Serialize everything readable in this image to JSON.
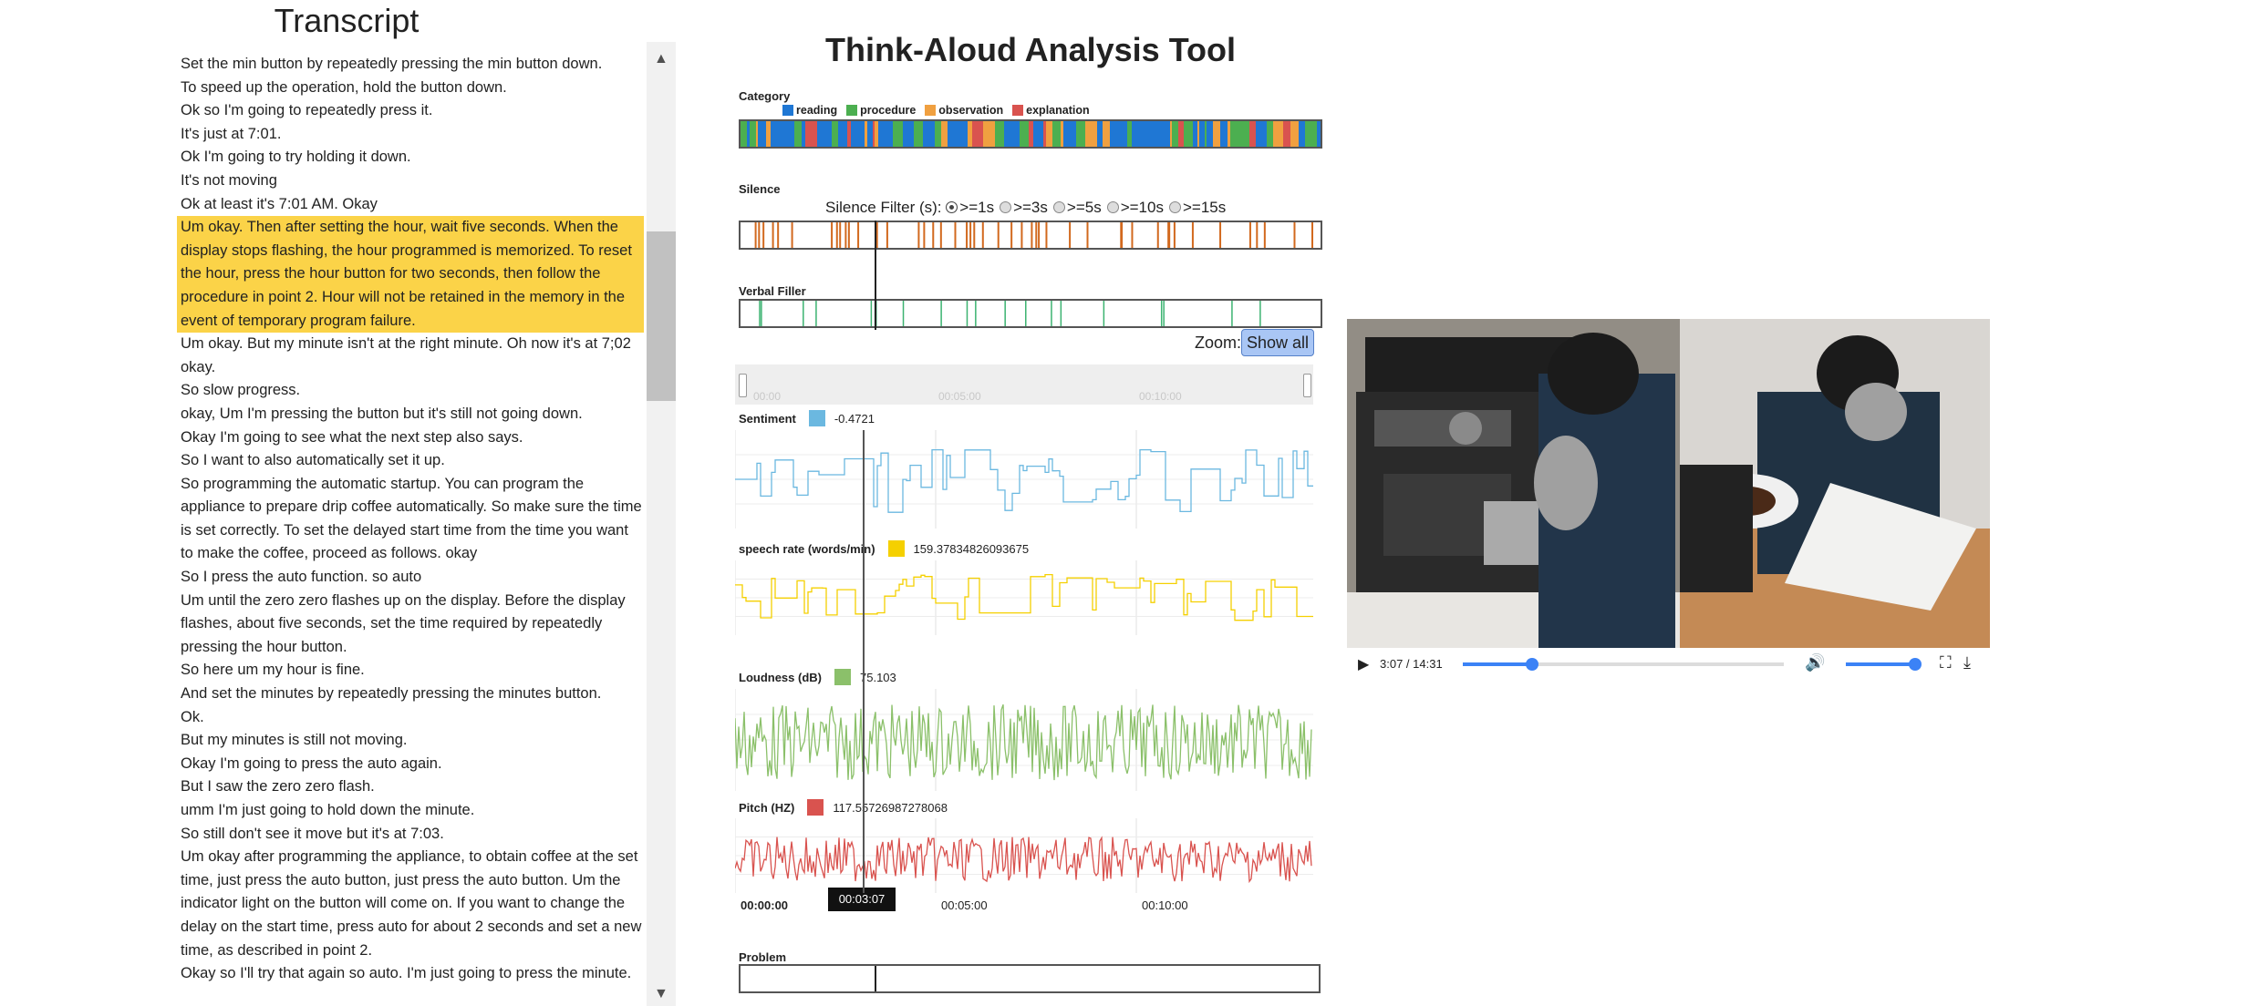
{
  "transcript": {
    "title": "Transcript",
    "lines": [
      {
        "text": "Set the min button by repeatedly pressing the min button down.",
        "highlight": false
      },
      {
        "text": "To speed up the operation, hold the button down.",
        "highlight": false
      },
      {
        "text": "Ok so I'm going to repeatedly press it.",
        "highlight": false
      },
      {
        "text": "It's just at 7:01.",
        "highlight": false
      },
      {
        "text": "Ok I'm going to try holding it down.",
        "highlight": false
      },
      {
        "text": "It's not moving",
        "highlight": false
      },
      {
        "text": "Ok at least it's 7:01 AM. Okay",
        "highlight": false
      },
      {
        "text": "Um okay. Then after setting the hour, wait five seconds. When the display stops flashing, the hour programmed is memorized. To reset the hour, press the hour button for two seconds, then follow the procedure in point 2. Hour will not be retained in the memory in the event of temporary program failure.",
        "highlight": true
      },
      {
        "text": "Um okay. But my minute isn't at the right minute. Oh now it's at 7;02 okay.",
        "highlight": false
      },
      {
        "text": "So slow progress.",
        "highlight": false
      },
      {
        "text": "okay, Um I'm pressing the button but it's still not going down.",
        "highlight": false
      },
      {
        "text": "Okay I'm going to see what the next step also says.",
        "highlight": false
      },
      {
        "text": "So I want to also automatically set it up.",
        "highlight": false
      },
      {
        "text": "So programming the automatic startup. You can program the appliance to prepare drip coffee automatically. So make sure the time is set correctly. To set the delayed start time from the time you want to make the coffee, proceed as follows. okay",
        "highlight": false
      },
      {
        "text": "So I press the auto function. so auto",
        "highlight": false
      },
      {
        "text": "Um until the zero zero flashes up on the display. Before the display flashes, about five seconds, set the time required by repeatedly pressing the hour button.",
        "highlight": false
      },
      {
        "text": "So here um my hour is fine.",
        "highlight": false
      },
      {
        "text": "And set the minutes by repeatedly pressing the minutes button.",
        "highlight": false
      },
      {
        "text": "Ok.",
        "highlight": false
      },
      {
        "text": "But my minutes is still not moving.",
        "highlight": false
      },
      {
        "text": "Okay I'm going to press the auto again.",
        "highlight": false
      },
      {
        "text": "But I saw the zero zero flash.",
        "highlight": false
      },
      {
        "text": "umm I'm just going to hold down the minute.",
        "highlight": false
      },
      {
        "text": "So still don't see it move but it's at 7:03.",
        "highlight": false
      },
      {
        "text": "Um okay after programming the appliance, to obtain coffee at the set time, just press the auto button, just press the auto button. Um the indicator light on the button will come on. If you want to change the delay on the start time, press auto for about 2 seconds and set a new time, as described in point 2.",
        "highlight": false
      },
      {
        "text": "Okay so I'll try that again so auto. I'm just going to press the minute.",
        "highlight": false
      }
    ],
    "highlight_color": "#fbd348"
  },
  "app": {
    "title": "Think-Aloud Analysis Tool"
  },
  "category": {
    "label": "Category",
    "legend": [
      {
        "name": "reading",
        "color": "#1f77d4"
      },
      {
        "name": "procedure",
        "color": "#4caf50"
      },
      {
        "name": "observation",
        "color": "#f0a040"
      },
      {
        "name": "explanation",
        "color": "#d9534f"
      }
    ]
  },
  "silence": {
    "label": "Silence",
    "filter_label": "Silence Filter (s):",
    "options": [
      ">=1s",
      ">=3s",
      ">=5s",
      ">=10s",
      ">=15s"
    ],
    "selected": ">=1s",
    "mark_color": "#d2691e"
  },
  "verbal_filler": {
    "label": "Verbal Filler",
    "mark_color": "#3cb371"
  },
  "zoom": {
    "label": "Zoom:",
    "button": "Show all"
  },
  "brush": {
    "ticks": [
      "00:00",
      "00:05:00",
      "00:10:00"
    ]
  },
  "metrics": [
    {
      "key": "sentiment",
      "label": "Sentiment",
      "value": "-0.4721",
      "color": "#6bb8e0"
    },
    {
      "key": "speech_rate",
      "label": "speech rate (words/min)",
      "value": "159.37834826093675",
      "color": "#f5d000"
    },
    {
      "key": "loudness",
      "label": "Loudness (dB)",
      "value": "75.103",
      "color": "#8bc06a"
    },
    {
      "key": "pitch",
      "label": "Pitch (HZ)",
      "value": "117.55726987278068",
      "color": "#d9534f"
    }
  ],
  "timeline": {
    "ticks": [
      "00:00:00",
      "00:05:00",
      "00:10:00"
    ],
    "current": "00:03:07"
  },
  "problem": {
    "label": "Problem"
  },
  "video": {
    "time": "3:07 / 14:31",
    "progress": 0.215,
    "volume": 1.0
  }
}
